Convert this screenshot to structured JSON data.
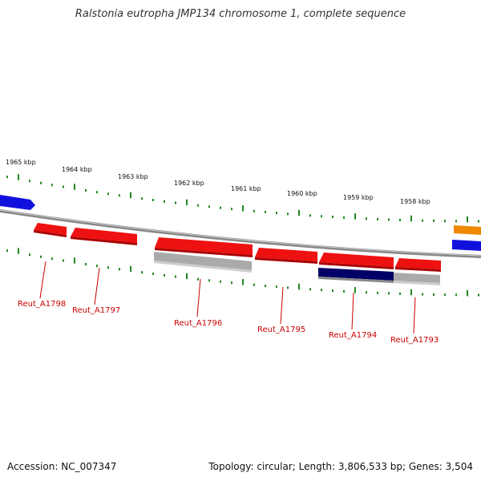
{
  "title": "Ralstonia eutropha JMP134 chromosome 1, complete sequence",
  "footer": {
    "accession": "Accession: NC_007347",
    "summary": "Topology: circular; Length: 3,806,533 bp; Genes: 3,504"
  },
  "colors": {
    "gene_red": "#ee1111",
    "gene_blue": "#1111dd",
    "gene_navy": "#000066",
    "gene_orange": "#ee8800",
    "gene_gray": "#aaaaaa",
    "backbone": "#888888",
    "tick": "#228822",
    "label": "#cc0000"
  },
  "kbp_labels": [
    "1965 kbp",
    "1964 kbp",
    "1963 kbp",
    "1962 kbp",
    "1961 kbp",
    "1960 kbp",
    "1959 kbp",
    "1958 kbp"
  ],
  "gene_labels": [
    "Reut_A1798",
    "Reut_A1797",
    "Reut_A1796",
    "Reut_A1795",
    "Reut_A1794",
    "Reut_A1793"
  ]
}
